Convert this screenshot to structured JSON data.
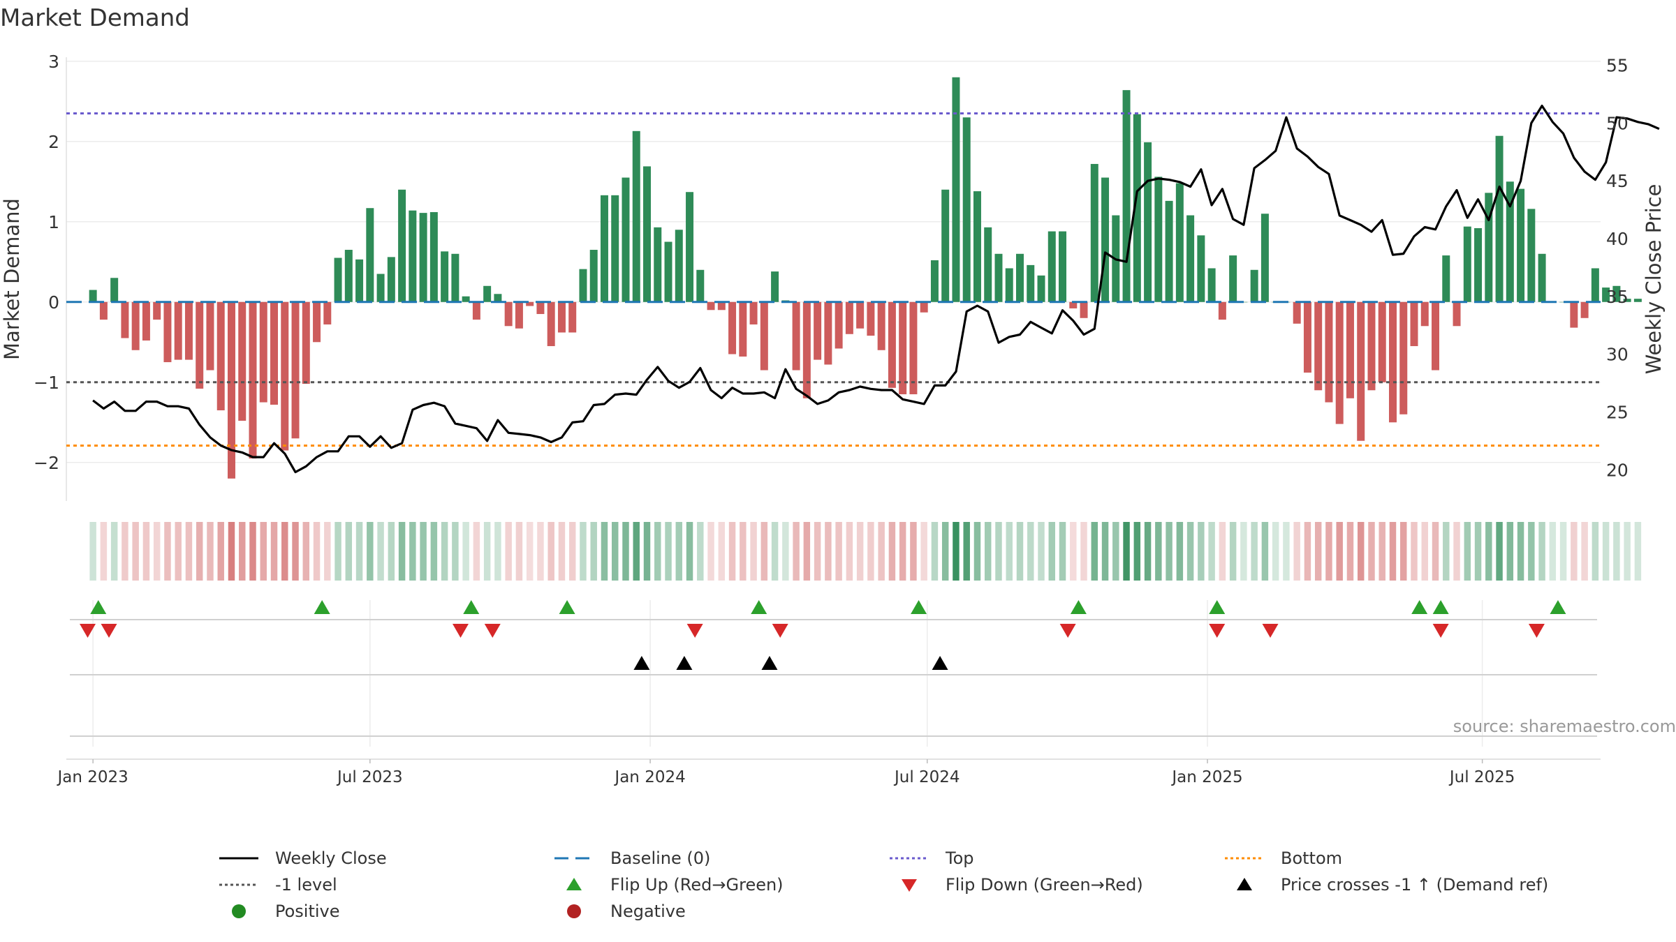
{
  "title": "Market Demand",
  "source_note": "source: sharemaestro.com",
  "colors": {
    "positive": "#2e8b57",
    "negative": "#cd5c5c",
    "price": "#000000",
    "baseline": "#1f77b4",
    "top": "#6a5acd",
    "bottom": "#ff8c00",
    "minus_one": "#555555",
    "flip_up": "#2ca02c",
    "flip_down": "#d62728",
    "positive_dot": "#228b22",
    "negative_dot": "#b22222"
  },
  "chart_data": {
    "type": "bar+line",
    "title": "Market Demand",
    "ylabel": "Market Demand",
    "y2label": "Weekly Close Price",
    "ylim": [
      -2.48,
      3.05
    ],
    "y2lim": [
      17.3,
      55.7
    ],
    "yticks": [
      {
        "value": 3,
        "label": "3"
      },
      {
        "value": 2,
        "label": "2"
      },
      {
        "value": 1,
        "label": "1"
      },
      {
        "value": 0,
        "label": "0"
      },
      {
        "value": -1,
        "label": "−1"
      },
      {
        "value": -2,
        "label": "−2"
      }
    ],
    "y2ticks": [
      {
        "value": 55,
        "label": "55"
      },
      {
        "value": 50,
        "label": "50"
      },
      {
        "value": 45,
        "label": "45"
      },
      {
        "value": 40,
        "label": "40"
      },
      {
        "value": 35,
        "label": "35"
      },
      {
        "value": 30,
        "label": "30"
      },
      {
        "value": 25,
        "label": "25"
      },
      {
        "value": 20,
        "label": "20"
      }
    ],
    "x_range_weeks": [
      -2.5,
      141.5
    ],
    "xticks": [
      {
        "week": 0,
        "label": "Jan 2023"
      },
      {
        "week": 26,
        "label": "Jul 2023"
      },
      {
        "week": 52.3,
        "label": "Jan 2024"
      },
      {
        "week": 78.3,
        "label": "Jul 2024"
      },
      {
        "week": 104.6,
        "label": "Jan 2025"
      },
      {
        "week": 130.4,
        "label": "Jul 2025"
      }
    ],
    "demand": [
      0.15,
      -0.22,
      0.3,
      -0.45,
      -0.6,
      -0.48,
      -0.22,
      -0.75,
      -0.72,
      -0.72,
      -1.08,
      -0.85,
      -1.35,
      -2.2,
      -1.48,
      -1.95,
      -1.25,
      -1.28,
      -1.85,
      -1.7,
      -1.02,
      -0.5,
      -0.28,
      0.55,
      0.65,
      0.53,
      1.17,
      0.35,
      0.56,
      1.4,
      1.14,
      1.11,
      1.12,
      0.63,
      0.6,
      0.07,
      -0.22,
      0.2,
      0.1,
      -0.3,
      -0.33,
      -0.05,
      -0.15,
      -0.55,
      -0.38,
      -0.38,
      0.41,
      0.65,
      1.33,
      1.33,
      1.55,
      2.13,
      1.69,
      0.93,
      0.75,
      0.9,
      1.37,
      0.4,
      -0.1,
      -0.1,
      -0.65,
      -0.68,
      -0.28,
      -0.85,
      0.38,
      0.02,
      -0.85,
      -1.2,
      -0.72,
      -0.78,
      -0.58,
      -0.4,
      -0.33,
      -0.42,
      -0.6,
      -1.07,
      -1.15,
      -1.15,
      -0.13,
      0.52,
      1.4,
      2.8,
      2.3,
      1.38,
      0.93,
      0.6,
      0.42,
      0.6,
      0.46,
      0.33,
      0.88,
      0.88,
      -0.08,
      -0.2,
      1.72,
      1.55,
      1.08,
      2.64,
      2.34,
      1.99,
      1.56,
      1.26,
      1.48,
      1.08,
      0.83,
      0.42,
      -0.22,
      0.58,
      0.0,
      0.4,
      1.1,
      0.0,
      0.0,
      -0.27,
      -0.88,
      -1.1,
      -1.25,
      -1.52,
      -1.2,
      -1.73,
      -1.1,
      -1.0,
      -1.5,
      -1.4,
      -0.55,
      -0.3,
      -0.85,
      0.58,
      -0.3,
      0.94,
      0.92,
      1.36,
      2.07,
      1.5,
      1.41,
      1.16,
      0.6,
      0.0,
      0.0,
      -0.32,
      -0.2,
      0.42,
      0.18,
      0.2,
      0.04,
      0.04
    ],
    "price": [
      26.0,
      25.3,
      25.9,
      25.1,
      25.1,
      25.9,
      25.9,
      25.5,
      25.5,
      25.3,
      23.9,
      22.8,
      22.1,
      21.7,
      21.5,
      21.1,
      21.1,
      22.3,
      21.4,
      19.8,
      20.3,
      21.1,
      21.6,
      21.6,
      22.9,
      22.9,
      22.0,
      22.9,
      21.9,
      22.3,
      25.2,
      25.6,
      25.8,
      25.5,
      24.0,
      23.8,
      23.6,
      22.5,
      24.3,
      23.2,
      23.1,
      23.0,
      22.8,
      22.4,
      22.8,
      24.1,
      24.2,
      25.6,
      25.7,
      26.5,
      26.6,
      26.5,
      27.8,
      28.9,
      27.7,
      27.1,
      27.6,
      28.8,
      26.9,
      26.2,
      27.1,
      26.6,
      26.6,
      26.7,
      26.2,
      28.7,
      27.0,
      26.4,
      25.7,
      26.0,
      26.7,
      26.9,
      27.2,
      27.0,
      26.9,
      26.9,
      26.1,
      25.9,
      25.7,
      27.3,
      27.3,
      28.5,
      33.7,
      34.2,
      33.7,
      31.0,
      31.5,
      31.7,
      32.8,
      32.3,
      31.8,
      33.8,
      32.9,
      31.7,
      32.2,
      38.8,
      38.2,
      38.0,
      44.1,
      45.0,
      45.2,
      45.1,
      44.9,
      44.5,
      46.0,
      42.9,
      44.3,
      41.7,
      41.2,
      46.1,
      46.8,
      47.6,
      50.5,
      47.8,
      47.1,
      46.2,
      45.6,
      42.0,
      41.6,
      41.2,
      40.6,
      41.6,
      38.6,
      38.7,
      40.2,
      41.0,
      40.8,
      42.8,
      44.2,
      41.8,
      43.4,
      41.6,
      44.5,
      42.8,
      45.0,
      50.0,
      51.5,
      50.1,
      49.1,
      47.0,
      45.8,
      45.1,
      46.6,
      50.5,
      50.4,
      50.1,
      49.9,
      49.5
    ],
    "reference_lines": [
      {
        "name": "Top",
        "value": 2.35
      },
      {
        "name": "Bottom",
        "value": -1.79
      },
      {
        "name": "-1 level",
        "value": -1
      },
      {
        "name": "Baseline (0)",
        "value": 0
      }
    ],
    "flip_up_weeks": [
      0.5,
      21.5,
      35.5,
      44.5,
      62.5,
      77.5,
      92.5,
      105.5,
      124.5,
      126.5,
      137.5
    ],
    "flip_down_weeks": [
      -0.5,
      1.5,
      34.5,
      37.5,
      56.5,
      64.5,
      91.5,
      105.5,
      110.5,
      126.5,
      135.5
    ],
    "price_cross_weeks": [
      51.5,
      55.5,
      63.5,
      79.5
    ]
  },
  "legend": {
    "items": [
      {
        "label": "Weekly Close",
        "icon": "solid-line"
      },
      {
        "label": "-1 level",
        "icon": "dotted-line"
      },
      {
        "label": "Positive",
        "icon": "green-dot"
      },
      {
        "label": "Baseline (0)",
        "icon": "dashed-line"
      },
      {
        "label": "Flip Up (Red→Green)",
        "icon": "up-triangle"
      },
      {
        "label": "Negative",
        "icon": "red-dot"
      },
      {
        "label": "Top",
        "icon": "dotted-line"
      },
      {
        "label": "Flip Down (Green→Red)",
        "icon": "down-triangle"
      },
      {
        "label": "Bottom",
        "icon": "dotted-line"
      },
      {
        "label": "Price crosses -1 ↑ (Demand ref)",
        "icon": "black-triangle"
      }
    ]
  }
}
